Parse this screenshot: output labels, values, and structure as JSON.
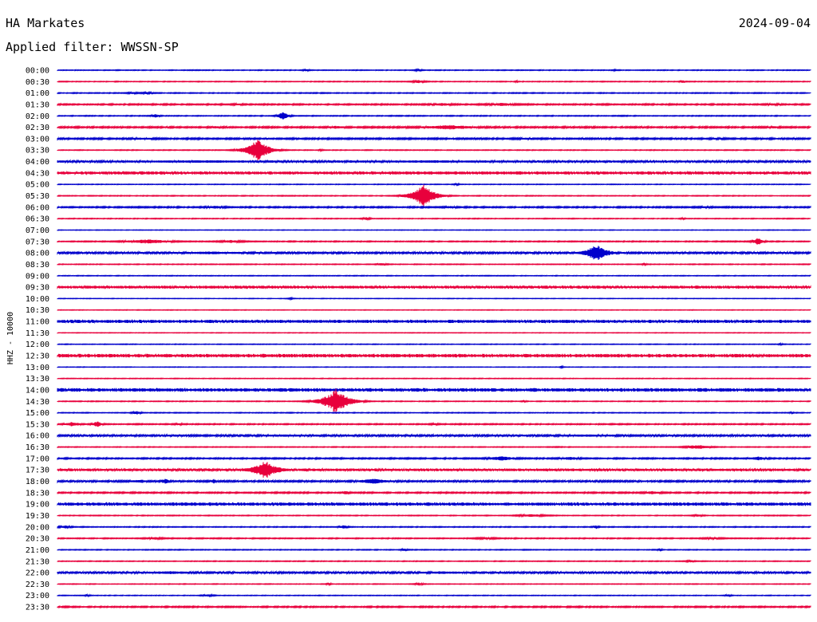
{
  "header": {
    "station": "HA Markates",
    "date": "2024-09-04",
    "filter_label": "Applied filter: WWSSN-SP"
  },
  "chart_data": {
    "type": "line",
    "title": "",
    "ylabel": "HHZ - 10000",
    "xlabel": "",
    "colors": [
      "#0000cc",
      "#e8003c"
    ],
    "rows": [
      {
        "time": "00:00",
        "noise": 0.35,
        "events": [
          {
            "x": 0.33,
            "amp": 1.5,
            "dur": 0.006
          },
          {
            "x": 0.48,
            "amp": 1.5,
            "dur": 0.007
          },
          {
            "x": 0.74,
            "amp": 1.2,
            "dur": 0.003
          }
        ]
      },
      {
        "time": "00:30",
        "noise": 0.35,
        "events": [
          {
            "x": 0.48,
            "amp": 2.0,
            "dur": 0.01
          },
          {
            "x": 0.83,
            "amp": 2.0,
            "dur": 0.004
          },
          {
            "x": 0.61,
            "amp": 1.5,
            "dur": 0.003
          }
        ]
      },
      {
        "time": "01:00",
        "noise": 0.4,
        "events": [
          {
            "x": 0.1,
            "amp": 1.5,
            "dur": 0.01
          },
          {
            "x": 0.12,
            "amp": 1.5,
            "dur": 0.012
          }
        ]
      },
      {
        "time": "01:30",
        "noise": 0.6,
        "events": [
          {
            "x": 0.24,
            "amp": 1.5,
            "dur": 0.012
          },
          {
            "x": 0.51,
            "amp": 2.0,
            "dur": 0.02
          },
          {
            "x": 0.59,
            "amp": 2.0,
            "dur": 0.03
          },
          {
            "x": 0.95,
            "amp": 1.5,
            "dur": 0.02
          }
        ]
      },
      {
        "time": "02:00",
        "noise": 0.4,
        "events": [
          {
            "x": 0.13,
            "amp": 2.5,
            "dur": 0.006
          },
          {
            "x": 0.3,
            "amp": 6.0,
            "dur": 0.006
          }
        ]
      },
      {
        "time": "02:30",
        "noise": 0.7,
        "events": [
          {
            "x": 0.21,
            "amp": 2.0,
            "dur": 0.008
          },
          {
            "x": 0.37,
            "amp": 1.8,
            "dur": 0.02
          },
          {
            "x": 0.52,
            "amp": 3.0,
            "dur": 0.04
          },
          {
            "x": 0.95,
            "amp": 1.6,
            "dur": 0.02
          }
        ]
      },
      {
        "time": "03:00",
        "noise": 0.7,
        "events": [
          {
            "x": 0.11,
            "amp": 1.6,
            "dur": 0.03
          },
          {
            "x": 0.62,
            "amp": 1.4,
            "dur": 0.02
          },
          {
            "x": 0.88,
            "amp": 1.4,
            "dur": 0.02
          }
        ]
      },
      {
        "time": "03:30",
        "noise": 0.35,
        "events": [
          {
            "x": 0.266,
            "amp": 15.0,
            "dur": 0.012
          },
          {
            "x": 0.35,
            "amp": 1.5,
            "dur": 0.004
          }
        ]
      },
      {
        "time": "04:00",
        "noise": 1.0,
        "events": [
          {
            "x": 0.2,
            "amp": 1.6,
            "dur": 0.2
          },
          {
            "x": 0.5,
            "amp": 1.6,
            "dur": 0.2
          }
        ]
      },
      {
        "time": "04:30",
        "noise": 1.4,
        "events": [
          {
            "x": 0.5,
            "amp": 1.3,
            "dur": 0.3
          }
        ]
      },
      {
        "time": "05:00",
        "noise": 0.3,
        "events": [
          {
            "x": 0.53,
            "amp": 1.5,
            "dur": 0.004
          }
        ]
      },
      {
        "time": "05:30",
        "noise": 0.35,
        "events": [
          {
            "x": 0.486,
            "amp": 16.0,
            "dur": 0.012
          }
        ]
      },
      {
        "time": "06:00",
        "noise": 0.6,
        "events": [
          {
            "x": 0.21,
            "amp": 1.8,
            "dur": 0.02
          },
          {
            "x": 0.52,
            "amp": 1.8,
            "dur": 0.015
          },
          {
            "x": 0.86,
            "amp": 1.5,
            "dur": 0.02
          }
        ]
      },
      {
        "time": "06:30",
        "noise": 0.35,
        "events": [
          {
            "x": 0.41,
            "amp": 2.0,
            "dur": 0.006
          },
          {
            "x": 0.83,
            "amp": 1.5,
            "dur": 0.004
          }
        ]
      },
      {
        "time": "07:00",
        "noise": 0.25,
        "events": []
      },
      {
        "time": "07:30",
        "noise": 0.45,
        "events": [
          {
            "x": 0.12,
            "amp": 3.0,
            "dur": 0.03
          },
          {
            "x": 0.23,
            "amp": 2.0,
            "dur": 0.02
          },
          {
            "x": 0.93,
            "amp": 5.0,
            "dur": 0.006
          }
        ]
      },
      {
        "time": "08:00",
        "noise": 0.9,
        "events": [
          {
            "x": 0.2,
            "amp": 1.8,
            "dur": 0.08
          },
          {
            "x": 0.716,
            "amp": 12.0,
            "dur": 0.012
          }
        ]
      },
      {
        "time": "08:30",
        "noise": 0.35,
        "events": [
          {
            "x": 0.43,
            "amp": 1.8,
            "dur": 0.008
          },
          {
            "x": 0.78,
            "amp": 1.5,
            "dur": 0.004
          }
        ]
      },
      {
        "time": "09:00",
        "noise": 0.3,
        "events": []
      },
      {
        "time": "09:30",
        "noise": 1.3,
        "events": []
      },
      {
        "time": "10:00",
        "noise": 0.25,
        "events": [
          {
            "x": 0.31,
            "amp": 1.3,
            "dur": 0.004
          }
        ]
      },
      {
        "time": "10:30",
        "noise": 0.25,
        "events": []
      },
      {
        "time": "11:00",
        "noise": 1.4,
        "events": []
      },
      {
        "time": "11:30",
        "noise": 0.25,
        "events": []
      },
      {
        "time": "12:00",
        "noise": 0.3,
        "events": [
          {
            "x": 0.96,
            "amp": 1.3,
            "dur": 0.003
          }
        ]
      },
      {
        "time": "12:30",
        "noise": 1.6,
        "events": []
      },
      {
        "time": "13:00",
        "noise": 0.25,
        "events": [
          {
            "x": 0.67,
            "amp": 1.3,
            "dur": 0.003
          }
        ]
      },
      {
        "time": "13:30",
        "noise": 0.3,
        "events": []
      },
      {
        "time": "14:00",
        "noise": 1.6,
        "events": []
      },
      {
        "time": "14:30",
        "noise": 0.35,
        "events": [
          {
            "x": 0.37,
            "amp": 16.0,
            "dur": 0.014
          },
          {
            "x": 0.62,
            "amp": 1.4,
            "dur": 0.004
          }
        ]
      },
      {
        "time": "15:00",
        "noise": 0.35,
        "events": [
          {
            "x": 0.105,
            "amp": 2.5,
            "dur": 0.006
          },
          {
            "x": 0.975,
            "amp": 1.5,
            "dur": 0.003
          }
        ]
      },
      {
        "time": "15:30",
        "noise": 0.5,
        "events": [
          {
            "x": 0.02,
            "amp": 3.0,
            "dur": 0.01
          },
          {
            "x": 0.053,
            "amp": 4.0,
            "dur": 0.006
          },
          {
            "x": 0.16,
            "amp": 1.5,
            "dur": 0.01
          },
          {
            "x": 0.5,
            "amp": 1.5,
            "dur": 0.01
          }
        ]
      },
      {
        "time": "16:00",
        "noise": 0.9,
        "events": [
          {
            "x": 0.3,
            "amp": 1.4,
            "dur": 0.1
          },
          {
            "x": 0.7,
            "amp": 1.4,
            "dur": 0.1
          }
        ]
      },
      {
        "time": "16:30",
        "noise": 0.35,
        "events": [
          {
            "x": 0.85,
            "amp": 3.0,
            "dur": 0.015
          }
        ]
      },
      {
        "time": "17:00",
        "noise": 0.6,
        "events": [
          {
            "x": 0.59,
            "amp": 3.0,
            "dur": 0.02
          },
          {
            "x": 0.68,
            "amp": 2.0,
            "dur": 0.02
          },
          {
            "x": 0.93,
            "amp": 2.5,
            "dur": 0.015
          }
        ]
      },
      {
        "time": "17:30",
        "noise": 1.2,
        "events": [
          {
            "x": 0.276,
            "amp": 12.0,
            "dur": 0.014
          }
        ]
      },
      {
        "time": "18:00",
        "noise": 0.8,
        "events": [
          {
            "x": 0.11,
            "amp": 2.5,
            "dur": 0.012
          },
          {
            "x": 0.143,
            "amp": 4.0,
            "dur": 0.005
          },
          {
            "x": 0.208,
            "amp": 3.0,
            "dur": 0.004
          },
          {
            "x": 0.42,
            "amp": 3.5,
            "dur": 0.02
          },
          {
            "x": 0.96,
            "amp": 3.0,
            "dur": 0.01
          }
        ]
      },
      {
        "time": "18:30",
        "noise": 0.6,
        "events": [
          {
            "x": 0.383,
            "amp": 3.0,
            "dur": 0.005
          },
          {
            "x": 0.79,
            "amp": 2.0,
            "dur": 0.02
          }
        ]
      },
      {
        "time": "19:00",
        "noise": 1.5,
        "events": []
      },
      {
        "time": "19:30",
        "noise": 0.35,
        "events": [
          {
            "x": 0.63,
            "amp": 2.0,
            "dur": 0.02
          },
          {
            "x": 0.85,
            "amp": 1.8,
            "dur": 0.008
          }
        ]
      },
      {
        "time": "20:00",
        "noise": 0.4,
        "events": [
          {
            "x": 0.01,
            "amp": 2.0,
            "dur": 0.01
          },
          {
            "x": 0.38,
            "amp": 2.5,
            "dur": 0.006
          },
          {
            "x": 0.715,
            "amp": 2.0,
            "dur": 0.005
          }
        ]
      },
      {
        "time": "20:30",
        "noise": 0.45,
        "events": [
          {
            "x": 0.13,
            "amp": 1.5,
            "dur": 0.02
          },
          {
            "x": 0.57,
            "amp": 1.5,
            "dur": 0.02
          },
          {
            "x": 0.87,
            "amp": 1.5,
            "dur": 0.02
          }
        ]
      },
      {
        "time": "21:00",
        "noise": 0.35,
        "events": [
          {
            "x": 0.46,
            "amp": 2.0,
            "dur": 0.004
          },
          {
            "x": 0.8,
            "amp": 1.5,
            "dur": 0.004
          }
        ]
      },
      {
        "time": "21:30",
        "noise": 0.35,
        "events": [
          {
            "x": 0.84,
            "amp": 1.5,
            "dur": 0.008
          }
        ]
      },
      {
        "time": "22:00",
        "noise": 0.9,
        "events": [
          {
            "x": 0.15,
            "amp": 1.8,
            "dur": 0.06
          },
          {
            "x": 0.51,
            "amp": 1.8,
            "dur": 0.06
          },
          {
            "x": 0.68,
            "amp": 1.5,
            "dur": 0.04
          }
        ]
      },
      {
        "time": "22:30",
        "noise": 0.3,
        "events": [
          {
            "x": 0.36,
            "amp": 1.5,
            "dur": 0.004
          },
          {
            "x": 0.48,
            "amp": 2.0,
            "dur": 0.006
          }
        ]
      },
      {
        "time": "23:00",
        "noise": 0.3,
        "events": [
          {
            "x": 0.04,
            "amp": 1.5,
            "dur": 0.004
          },
          {
            "x": 0.2,
            "amp": 1.5,
            "dur": 0.01
          },
          {
            "x": 0.89,
            "amp": 2.0,
            "dur": 0.004
          }
        ]
      },
      {
        "time": "23:30",
        "noise": 0.6,
        "events": []
      }
    ]
  }
}
